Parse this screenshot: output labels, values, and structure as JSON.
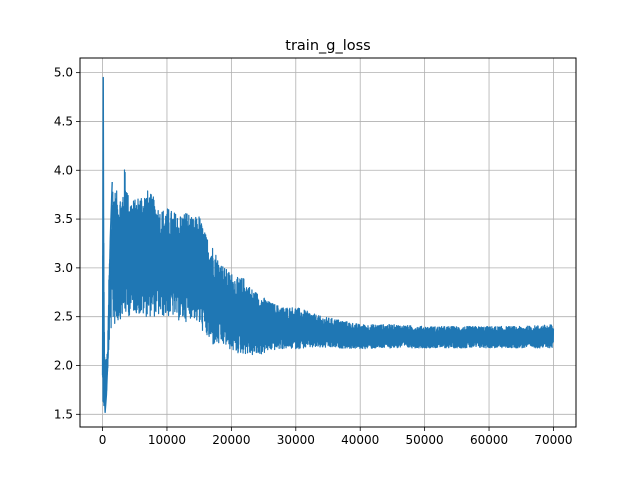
{
  "chart_data": {
    "type": "line",
    "title": "train_g_loss",
    "xlabel": "",
    "ylabel": "",
    "xlim": [
      -3500,
      73500
    ],
    "ylim": [
      1.37,
      5.15
    ],
    "x_ticks": [
      0,
      10000,
      20000,
      30000,
      40000,
      50000,
      60000,
      70000
    ],
    "x_tick_labels": [
      "0",
      "10000",
      "20000",
      "30000",
      "40000",
      "50000",
      "60000",
      "70000"
    ],
    "y_ticks": [
      1.5,
      2.0,
      2.5,
      3.0,
      3.5,
      4.0,
      4.5,
      5.0
    ],
    "y_tick_labels": [
      "1.5",
      "2.0",
      "2.5",
      "3.0",
      "3.5",
      "4.0",
      "4.5",
      "5.0"
    ],
    "grid": true,
    "series": [
      {
        "color": "#1f77b4",
        "x_range": [
          0,
          70000
        ],
        "envelope": {
          "x": [
            0,
            100,
            200,
            300,
            500,
            800,
            1000,
            1500,
            2000,
            3000,
            3500,
            4000,
            5000,
            6000,
            7000,
            8000,
            9000,
            10000,
            11000,
            12000,
            13000,
            14000,
            15000,
            16000,
            17000,
            18000,
            19000,
            20000,
            21000,
            22000,
            23000,
            24000,
            25000,
            26000,
            28000,
            30000,
            32000,
            34000,
            36000,
            40000,
            45000,
            50000,
            55000,
            60000,
            65000,
            70000
          ],
          "upper": [
            1.9,
            4.95,
            3.2,
            2.2,
            2.0,
            2.2,
            3.0,
            3.88,
            3.8,
            3.75,
            4.08,
            3.75,
            3.7,
            3.78,
            3.8,
            3.72,
            3.6,
            3.62,
            3.58,
            3.55,
            3.6,
            3.5,
            3.55,
            3.35,
            3.25,
            3.1,
            3.0,
            2.95,
            2.9,
            2.9,
            2.8,
            2.75,
            2.7,
            2.65,
            2.6,
            2.6,
            2.55,
            2.5,
            2.48,
            2.42,
            2.42,
            2.4,
            2.4,
            2.4,
            2.4,
            2.42
          ],
          "lower": [
            1.7,
            1.6,
            1.5,
            1.5,
            1.6,
            1.9,
            2.2,
            2.45,
            2.4,
            2.5,
            2.5,
            2.5,
            2.55,
            2.5,
            2.5,
            2.5,
            2.5,
            2.5,
            2.5,
            2.45,
            2.45,
            2.5,
            2.4,
            2.3,
            2.2,
            2.2,
            2.2,
            2.15,
            2.12,
            2.12,
            2.1,
            2.1,
            2.12,
            2.15,
            2.17,
            2.17,
            2.18,
            2.18,
            2.18,
            2.17,
            2.18,
            2.18,
            2.18,
            2.18,
            2.18,
            2.18
          ]
        }
      }
    ]
  }
}
